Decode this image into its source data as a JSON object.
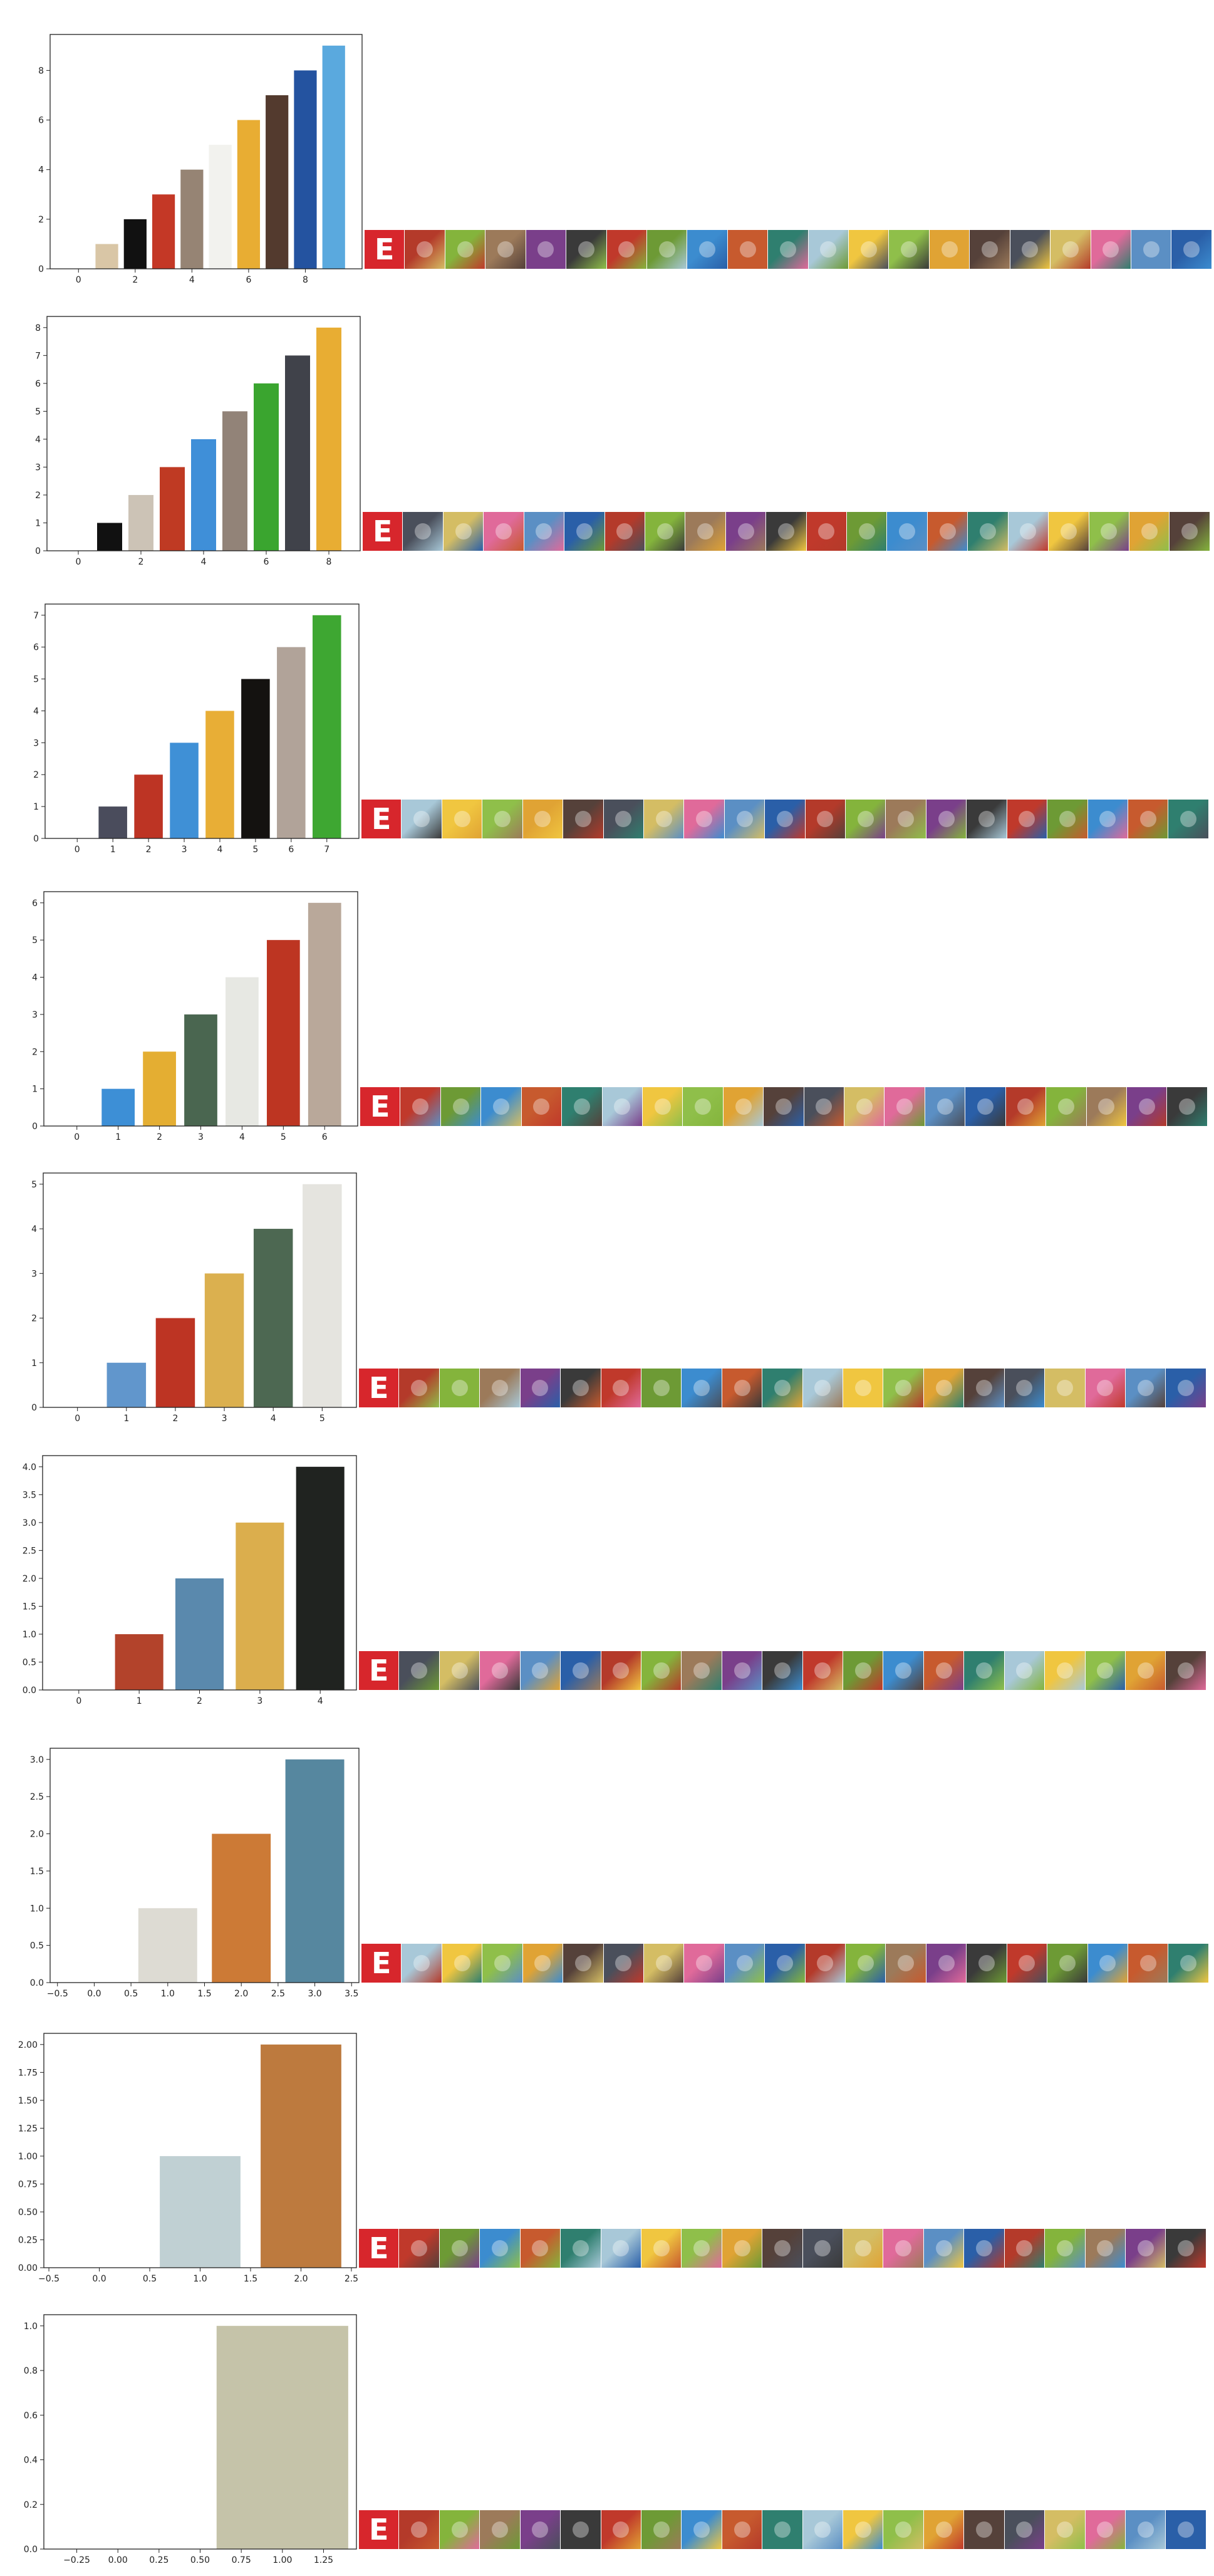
{
  "colors": {
    "axis": "#222222",
    "first_tile": "#d7262c",
    "tile_palette": [
      "#2a5fa8",
      "#6d9a35",
      "#e0a334",
      "#b43a2a",
      "#3c8ccf",
      "#55413a",
      "#84b43c",
      "#c75a2e",
      "#4a4f5b",
      "#9c7a5a",
      "#2f7f6f",
      "#d4bd64",
      "#7a3f8a",
      "#a8c8d8",
      "#e06a9a",
      "#3a3a3a",
      "#f0c640",
      "#5b8fc4",
      "#c0392b",
      "#8fbf4a"
    ]
  },
  "icons": {
    "first": "E",
    "first_name": "e-letter-logo-icon",
    "tile_name": "game-app-icon"
  },
  "chart_data": [
    {
      "type": "bar",
      "categories": [
        0,
        1,
        2,
        3,
        4,
        5,
        6,
        7,
        8,
        9
      ],
      "values": [
        0,
        1,
        2,
        3,
        4,
        5,
        6,
        7,
        8,
        9
      ],
      "bar_colors": [
        "#ffffff",
        "#d9c6a6",
        "#111111",
        "#c43826",
        "#968474",
        "#f2f2ee",
        "#e8ad33",
        "#533a2e",
        "#2453a0",
        "#5aa9de"
      ],
      "xlim": [
        -1,
        10
      ],
      "ylim": [
        0,
        9.45
      ],
      "xticks": [
        0,
        2,
        4,
        6,
        8
      ],
      "yticks": [
        0,
        2,
        4,
        6,
        8
      ],
      "title": "",
      "xlabel": "",
      "ylabel": "",
      "icon_count": 21
    },
    {
      "type": "bar",
      "categories": [
        0,
        1,
        2,
        3,
        4,
        5,
        6,
        7,
        8
      ],
      "values": [
        0,
        1,
        2,
        3,
        4,
        5,
        6,
        7,
        8
      ],
      "bar_colors": [
        "#ffffff",
        "#111111",
        "#ccc3b6",
        "#bf3a23",
        "#3f8fd8",
        "#928378",
        "#3aa52f",
        "#40424a",
        "#e8ad33"
      ],
      "xlim": [
        -1,
        9
      ],
      "ylim": [
        0,
        8.4
      ],
      "xticks": [
        0,
        2,
        4,
        6,
        8
      ],
      "yticks": [
        0,
        1,
        2,
        3,
        4,
        5,
        6,
        7,
        8
      ],
      "title": "",
      "xlabel": "",
      "ylabel": "",
      "icon_count": 21
    },
    {
      "type": "bar",
      "categories": [
        0,
        1,
        2,
        3,
        4,
        5,
        6,
        7
      ],
      "values": [
        0,
        1,
        2,
        3,
        4,
        5,
        6,
        7
      ],
      "bar_colors": [
        "#ffffff",
        "#4a4c5c",
        "#bd3424",
        "#3f90d6",
        "#e8ae36",
        "#141210",
        "#b1a399",
        "#3ea732"
      ],
      "xlim": [
        -0.9,
        7.9
      ],
      "ylim": [
        0,
        7.35
      ],
      "xticks": [
        0,
        1,
        2,
        3,
        4,
        5,
        6,
        7
      ],
      "yticks": [
        0,
        1,
        2,
        3,
        4,
        5,
        6,
        7
      ],
      "title": "",
      "xlabel": "",
      "ylabel": "",
      "icon_count": 21
    },
    {
      "type": "bar",
      "categories": [
        0,
        1,
        2,
        3,
        4,
        5,
        6
      ],
      "values": [
        0,
        1,
        2,
        3,
        4,
        5,
        6
      ],
      "bar_colors": [
        "#ffffff",
        "#3d8fd6",
        "#e4ae32",
        "#4a6650",
        "#e7e8e3",
        "#bd3522",
        "#b9a89a"
      ],
      "xlim": [
        -0.8,
        6.8
      ],
      "ylim": [
        0,
        6.3
      ],
      "xticks": [
        0,
        1,
        2,
        3,
        4,
        5,
        6
      ],
      "yticks": [
        0,
        1,
        2,
        3,
        4,
        5,
        6
      ],
      "title": "",
      "xlabel": "",
      "ylabel": "",
      "icon_count": 21
    },
    {
      "type": "bar",
      "categories": [
        0,
        1,
        2,
        3,
        4,
        5
      ],
      "values": [
        0,
        1,
        2,
        3,
        4,
        5
      ],
      "bar_colors": [
        "#ffffff",
        "#6196cc",
        "#bd3423",
        "#dbb04f",
        "#4d6852",
        "#e5e4df"
      ],
      "xlim": [
        -0.7,
        5.7
      ],
      "ylim": [
        0,
        5.25
      ],
      "xticks": [
        0,
        1,
        2,
        3,
        4,
        5
      ],
      "yticks": [
        0,
        1,
        2,
        3,
        4,
        5
      ],
      "title": "",
      "xlabel": "",
      "ylabel": "",
      "icon_count": 21
    },
    {
      "type": "bar",
      "categories": [
        0,
        1,
        2,
        3,
        4
      ],
      "values": [
        0,
        1,
        2,
        3,
        4
      ],
      "bar_colors": [
        "#ffffff",
        "#b3432b",
        "#5a89ad",
        "#dbae4d",
        "#202320"
      ],
      "xlim": [
        -0.6,
        4.6
      ],
      "ylim": [
        0,
        4.2
      ],
      "xticks": [
        0,
        1,
        2,
        3,
        4
      ],
      "yticks": [
        0,
        0.5,
        1,
        1.5,
        2,
        2.5,
        3,
        3.5,
        4
      ],
      "ytick_labels": [
        "0.0",
        "0.5",
        "1.0",
        "1.5",
        "2.0",
        "2.5",
        "3.0",
        "3.5",
        "4.0"
      ],
      "title": "",
      "xlabel": "",
      "ylabel": "",
      "icon_count": 21
    },
    {
      "type": "bar",
      "categories": [
        0,
        1,
        2,
        3
      ],
      "values": [
        0,
        1,
        2,
        3
      ],
      "bar_colors": [
        "#ffffff",
        "#dddbd3",
        "#cc7a36",
        "#56879f"
      ],
      "xlim": [
        -0.6,
        3.6
      ],
      "ylim": [
        0,
        3.15
      ],
      "xticks": [
        -0.5,
        0,
        0.5,
        1,
        1.5,
        2,
        2.5,
        3,
        3.5
      ],
      "xtick_labels": [
        "−0.5",
        "0.0",
        "0.5",
        "1.0",
        "1.5",
        "2.0",
        "2.5",
        "3.0",
        "3.5"
      ],
      "yticks": [
        0,
        0.5,
        1,
        1.5,
        2,
        2.5,
        3
      ],
      "ytick_labels": [
        "0.0",
        "0.5",
        "1.0",
        "1.5",
        "2.0",
        "2.5",
        "3.0"
      ],
      "title": "",
      "xlabel": "",
      "ylabel": "",
      "icon_count": 21
    },
    {
      "type": "bar",
      "categories": [
        0,
        1,
        2
      ],
      "values": [
        0,
        1,
        2
      ],
      "bar_colors": [
        "#ffffff",
        "#c0d0d3",
        "#bd7a3e"
      ],
      "xlim": [
        -0.55,
        2.55
      ],
      "ylim": [
        0,
        2.1
      ],
      "xticks": [
        -0.5,
        0,
        0.5,
        1,
        1.5,
        2,
        2.5
      ],
      "xtick_labels": [
        "−0.5",
        "0.0",
        "0.5",
        "1.0",
        "1.5",
        "2.0",
        "2.5"
      ],
      "yticks": [
        0,
        0.25,
        0.5,
        0.75,
        1,
        1.25,
        1.5,
        1.75,
        2
      ],
      "ytick_labels": [
        "0.00",
        "0.25",
        "0.50",
        "0.75",
        "1.00",
        "1.25",
        "1.50",
        "1.75",
        "2.00"
      ],
      "title": "",
      "xlabel": "",
      "ylabel": "",
      "icon_count": 21
    },
    {
      "type": "bar",
      "categories": [
        0,
        1
      ],
      "values": [
        0,
        1
      ],
      "bar_colors": [
        "#ffffff",
        "#c5c3a9"
      ],
      "xlim": [
        -0.45,
        1.45
      ],
      "ylim": [
        0,
        1.05
      ],
      "xticks": [
        -0.25,
        0,
        0.25,
        0.5,
        0.75,
        1,
        1.25
      ],
      "xtick_labels": [
        "−0.25",
        "0.00",
        "0.25",
        "0.50",
        "0.75",
        "1.00",
        "1.25"
      ],
      "yticks": [
        0,
        0.2,
        0.4,
        0.6,
        0.8,
        1
      ],
      "ytick_labels": [
        "0.0",
        "0.2",
        "0.4",
        "0.6",
        "0.8",
        "1.0"
      ],
      "title": "",
      "xlabel": "",
      "ylabel": "",
      "icon_count": 21
    }
  ]
}
